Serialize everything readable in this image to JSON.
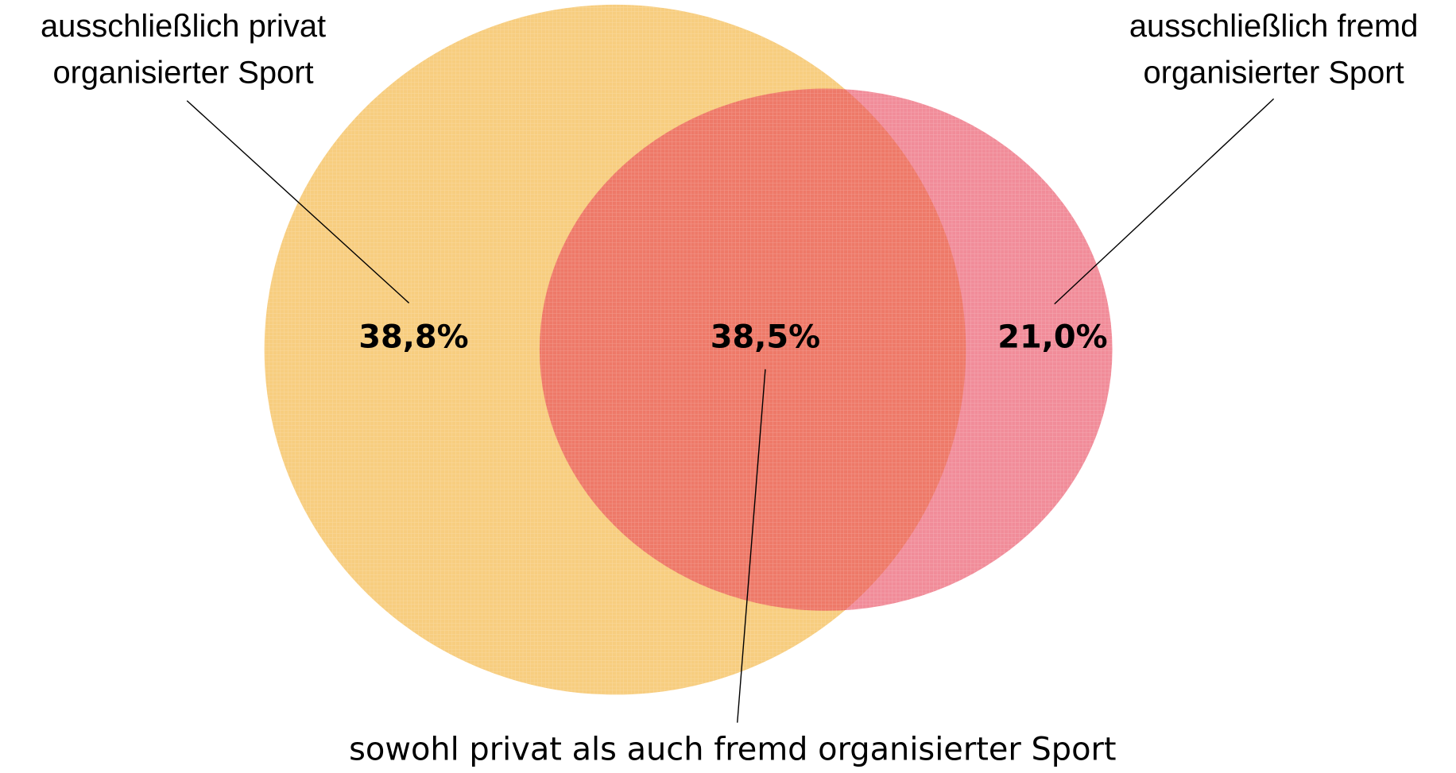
{
  "sets": [
    {
      "label": "ausschließlich privat organisierter Sport",
      "lines": [
        "ausschließlich privat",
        "organisierter Sport"
      ],
      "value": "38,8%"
    },
    {
      "label": "ausschließlich fremd organisierter Sport",
      "lines": [
        "ausschließlich fremd",
        "organisierter Sport"
      ],
      "value": "21,0%"
    }
  ],
  "overlap": {
    "label": "sowohl privat als auch fremd organisierter Sport",
    "value": "38,5%"
  }
}
